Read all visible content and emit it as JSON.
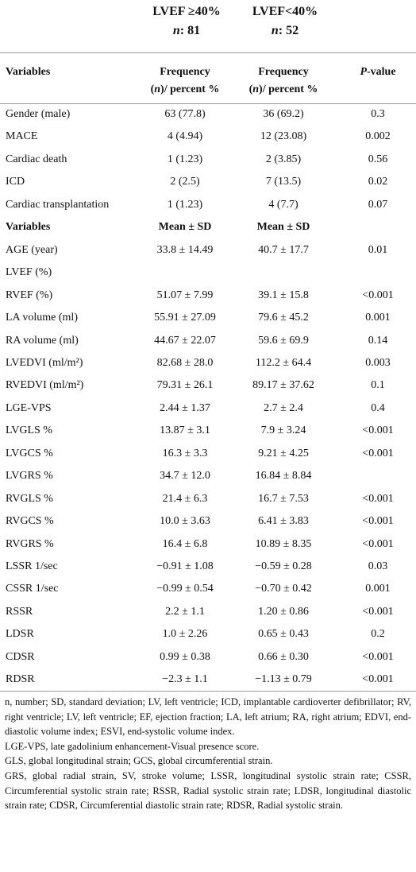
{
  "groups": [
    {
      "title": "LVEF ≥40%",
      "n_label": "n",
      "n_value": ": 81"
    },
    {
      "title": "LVEF<40%",
      "n_label": "n",
      "n_value": ": 52"
    }
  ],
  "frequency_header": {
    "variables": "Variables",
    "columns": [
      {
        "line1": "Frequency",
        "pre": "(",
        "em": "n",
        "post": ")/ percent %"
      },
      {
        "line1": "Frequency",
        "pre": "(",
        "em": "n",
        "post": ")/ percent %"
      }
    ],
    "p_value": {
      "em": "P",
      "post": "-value"
    }
  },
  "frequency_rows": [
    [
      "Gender (male)",
      "63 (77.8)",
      "36 (69.2)",
      "0.3"
    ],
    [
      "MACE",
      "4 (4.94)",
      "12 (23.08)",
      "0.002"
    ],
    [
      "Cardiac death",
      "1 (1.23)",
      "2 (3.85)",
      "0.56"
    ],
    [
      "ICD",
      "2 (2.5)",
      "7 (13.5)",
      "0.02"
    ],
    [
      "Cardiac transplantation",
      "1 (1.23)",
      "4 (7.7)",
      "0.07"
    ]
  ],
  "mean_header": [
    "Variables",
    "Mean ± SD",
    "Mean ± SD"
  ],
  "mean_rows": [
    [
      "AGE (year)",
      "33.8 ± 14.49",
      "40.7 ± 17.7",
      "0.01"
    ],
    [
      "LVEF (%)",
      null,
      null,
      null
    ],
    [
      "RVEF (%)",
      "51.07 ± 7.99",
      "39.1 ± 15.8",
      "<0.001"
    ],
    [
      "LA volume (ml)",
      "55.91 ± 27.09",
      "79.6 ± 45.2",
      "0.001"
    ],
    [
      "RA volume (ml)",
      "44.67 ± 22.07",
      "59.6 ± 69.9",
      "0.14"
    ],
    [
      "LVEDVI (ml/m²)",
      "82.68 ± 28.0",
      "112.2 ± 64.4",
      "0.003"
    ],
    [
      "RVEDVI (ml/m²)",
      "79.31 ± 26.1",
      "89.17 ± 37.62",
      "0.1"
    ],
    [
      "LGE-VPS",
      "2.44 ± 1.37",
      "2.7 ± 2.4",
      "0.4"
    ],
    [
      "LVGLS %",
      "13.87 ± 3.1",
      "7.9 ± 3.24",
      "<0.001"
    ],
    [
      "LVGCS %",
      "16.3 ± 3.3",
      "9.21 ± 4.25",
      "<0.001"
    ],
    [
      "LVGRS %",
      "34.7 ± 12.0",
      "16.84 ± 8.84",
      null
    ],
    [
      "RVGLS %",
      "21.4 ± 6.3",
      "16.7 ± 7.53",
      "<0.001"
    ],
    [
      "RVGCS %",
      "10.0 ± 3.63",
      "6.41 ± 3.83",
      "<0.001"
    ],
    [
      "RVGRS %",
      "16.4 ± 6.8",
      "10.89 ± 8.35",
      "<0.001"
    ],
    [
      "LSSR 1/sec",
      "−0.91 ± 1.08",
      "−0.59 ± 0.28",
      "0.03"
    ],
    [
      "CSSR 1/sec",
      "−0.99 ± 0.54",
      "−0.70 ± 0.42",
      "0.001"
    ],
    [
      "RSSR",
      "2.2 ± 1.1",
      "1.20 ± 0.86",
      "<0.001"
    ],
    [
      "LDSR",
      "1.0 ± 2.26",
      "0.65 ± 0.43",
      "0.2"
    ],
    [
      "CDSR",
      "0.99 ± 0.38",
      "0.66 ± 0.30",
      "<0.001"
    ],
    [
      "RDSR",
      "−2.3 ± 1.1",
      "−1.13 ± 0.79",
      "<0.001"
    ]
  ],
  "footnotes": [
    "n, number; SD, standard deviation; LV, left ventricle; ICD, implantable cardioverter defibrillator; RV, right ventricle; LV, left ventricle; EF, ejection fraction; LA, left atrium; RA, right atrium; EDVI, end-diastolic volume index; ESVI, end-systolic volume index.",
    "LGE-VPS, late gadolinium enhancement-Visual presence score.",
    "GLS, global longitudinal strain; GCS, global circumferential strain.",
    "GRS, global radial strain, SV, stroke volume; LSSR, longitudinal systolic strain rate; CSSR, Circumferential systolic strain rate; RSSR, Radial systolic strain rate; LDSR, longitudinal diastolic strain rate; CDSR, Circumferential diastolic strain rate; RDSR, Radial systolic strain."
  ]
}
